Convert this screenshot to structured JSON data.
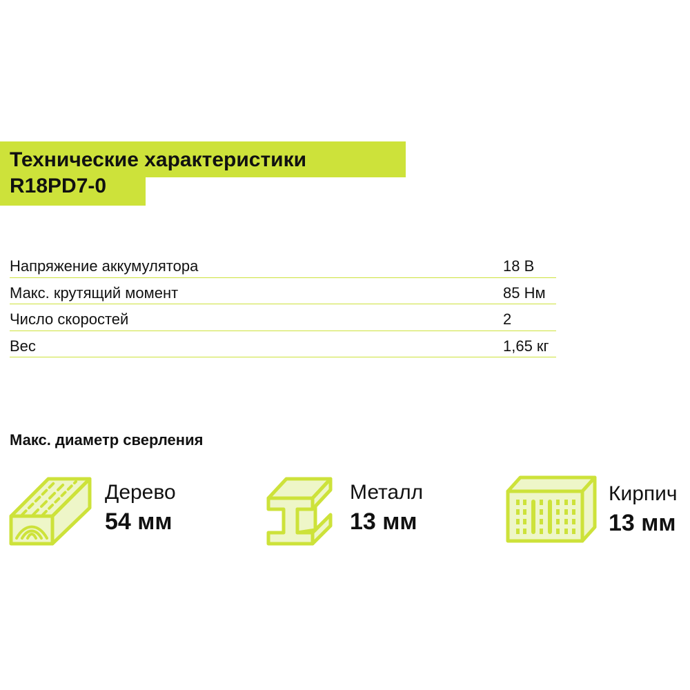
{
  "header": {
    "title_line_1": "Технические характеристики",
    "title_line_2": "R18PD7-0"
  },
  "specs": [
    {
      "label": "Напряжение аккумулятора",
      "value": "18 В"
    },
    {
      "label": "Макс. крутящий момент",
      "value": "85 Нм"
    },
    {
      "label": "Число скоростей",
      "value": "2"
    },
    {
      "label": "Вес",
      "value": "1,65 кг"
    }
  ],
  "drilling": {
    "title": "Макс. диаметр сверления",
    "materials": [
      {
        "name": "Дерево",
        "value": "54 мм",
        "icon": "wood-plank-icon"
      },
      {
        "name": "Металл",
        "value": "13 мм",
        "icon": "steel-beam-icon"
      },
      {
        "name": "Кирпич",
        "value": "13 мм",
        "icon": "brick-icon"
      }
    ]
  },
  "colors": {
    "accent": "#cde23a",
    "text": "#111111",
    "background": "#ffffff"
  }
}
